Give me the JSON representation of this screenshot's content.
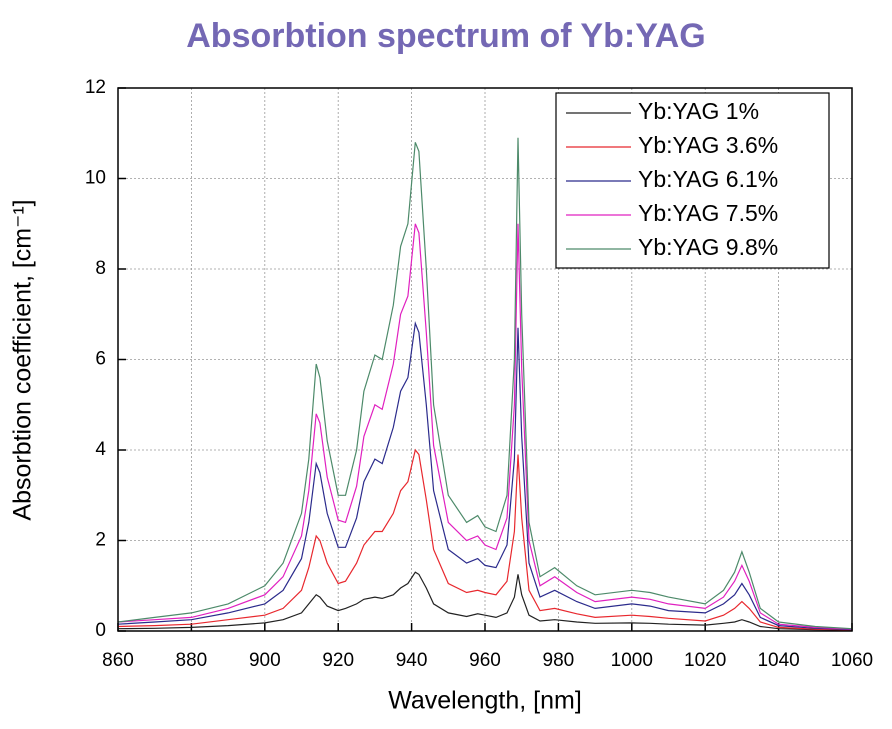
{
  "chart_data": {
    "type": "line",
    "title": "Absorbtion spectrum of Yb:YAG",
    "x_label": "Wavelength, [nm]",
    "y_label": "Absorbtion coefficient, [cm⁻¹]",
    "xlim": [
      860,
      1060
    ],
    "ylim": [
      0,
      12
    ],
    "xticks": [
      860,
      880,
      900,
      920,
      940,
      960,
      980,
      1000,
      1020,
      1040,
      1060
    ],
    "yticks": [
      0,
      2,
      4,
      6,
      8,
      10,
      12
    ],
    "grid": true,
    "legend": "upper right",
    "x": [
      860,
      870,
      880,
      890,
      900,
      905,
      910,
      912,
      914,
      915,
      917,
      920,
      922,
      925,
      927,
      930,
      932,
      935,
      937,
      939,
      941,
      942,
      944,
      946,
      950,
      955,
      958,
      960,
      963,
      966,
      968,
      969,
      970,
      972,
      975,
      979,
      985,
      990,
      1000,
      1005,
      1010,
      1020,
      1025,
      1028,
      1030,
      1032,
      1035,
      1040,
      1050,
      1060
    ],
    "series": [
      {
        "name": "Yb:YAG 1%",
        "color": "#222222",
        "values": [
          0.05,
          0.06,
          0.08,
          0.12,
          0.18,
          0.25,
          0.4,
          0.6,
          0.8,
          0.75,
          0.55,
          0.45,
          0.5,
          0.6,
          0.7,
          0.75,
          0.72,
          0.8,
          0.95,
          1.05,
          1.3,
          1.25,
          0.95,
          0.6,
          0.4,
          0.32,
          0.38,
          0.35,
          0.3,
          0.4,
          0.75,
          1.25,
          0.8,
          0.35,
          0.22,
          0.25,
          0.2,
          0.17,
          0.18,
          0.17,
          0.15,
          0.13,
          0.17,
          0.2,
          0.25,
          0.2,
          0.1,
          0.05,
          0.03,
          0.02
        ]
      },
      {
        "name": "Yb:YAG 3.6%",
        "color": "#e8282e",
        "values": [
          0.1,
          0.12,
          0.15,
          0.25,
          0.35,
          0.5,
          0.9,
          1.4,
          2.1,
          2.0,
          1.5,
          1.05,
          1.1,
          1.5,
          1.9,
          2.2,
          2.2,
          2.6,
          3.1,
          3.3,
          4.0,
          3.9,
          2.9,
          1.8,
          1.05,
          0.85,
          0.9,
          0.85,
          0.8,
          1.1,
          2.2,
          3.9,
          2.5,
          0.9,
          0.45,
          0.5,
          0.38,
          0.3,
          0.35,
          0.32,
          0.28,
          0.22,
          0.35,
          0.5,
          0.65,
          0.5,
          0.2,
          0.08,
          0.04,
          0.02
        ]
      },
      {
        "name": "Yb:YAG 6.1%",
        "color": "#2b2b8c",
        "values": [
          0.15,
          0.2,
          0.25,
          0.4,
          0.6,
          0.9,
          1.6,
          2.4,
          3.7,
          3.5,
          2.6,
          1.85,
          1.85,
          2.5,
          3.3,
          3.8,
          3.7,
          4.5,
          5.3,
          5.6,
          6.8,
          6.6,
          5.0,
          3.1,
          1.8,
          1.5,
          1.6,
          1.45,
          1.4,
          1.9,
          3.8,
          6.7,
          4.3,
          1.5,
          0.75,
          0.9,
          0.65,
          0.5,
          0.6,
          0.55,
          0.45,
          0.4,
          0.6,
          0.8,
          1.05,
          0.8,
          0.3,
          0.12,
          0.06,
          0.03
        ]
      },
      {
        "name": "Yb:YAG 7.5%",
        "color": "#e020c0",
        "values": [
          0.2,
          0.25,
          0.3,
          0.5,
          0.8,
          1.2,
          2.1,
          3.1,
          4.8,
          4.6,
          3.4,
          2.45,
          2.4,
          3.2,
          4.3,
          5.0,
          4.9,
          5.9,
          7.0,
          7.4,
          9.0,
          8.8,
          6.6,
          4.1,
          2.4,
          2.0,
          2.1,
          1.9,
          1.8,
          2.5,
          5.0,
          9.0,
          5.8,
          2.0,
          1.0,
          1.2,
          0.85,
          0.65,
          0.75,
          0.7,
          0.6,
          0.5,
          0.75,
          1.1,
          1.45,
          1.1,
          0.4,
          0.15,
          0.08,
          0.04
        ]
      },
      {
        "name": "Yb:YAG 9.8%",
        "color": "#4d8a6a",
        "values": [
          0.2,
          0.3,
          0.4,
          0.6,
          1.0,
          1.5,
          2.6,
          3.8,
          5.9,
          5.6,
          4.2,
          3.0,
          3.0,
          4.0,
          5.3,
          6.1,
          6.0,
          7.2,
          8.5,
          9.0,
          10.8,
          10.6,
          8.0,
          5.0,
          3.0,
          2.4,
          2.55,
          2.3,
          2.2,
          3.0,
          6.0,
          10.9,
          7.0,
          2.4,
          1.2,
          1.4,
          1.0,
          0.8,
          0.9,
          0.85,
          0.75,
          0.6,
          0.9,
          1.3,
          1.75,
          1.3,
          0.5,
          0.2,
          0.1,
          0.05
        ]
      }
    ]
  }
}
